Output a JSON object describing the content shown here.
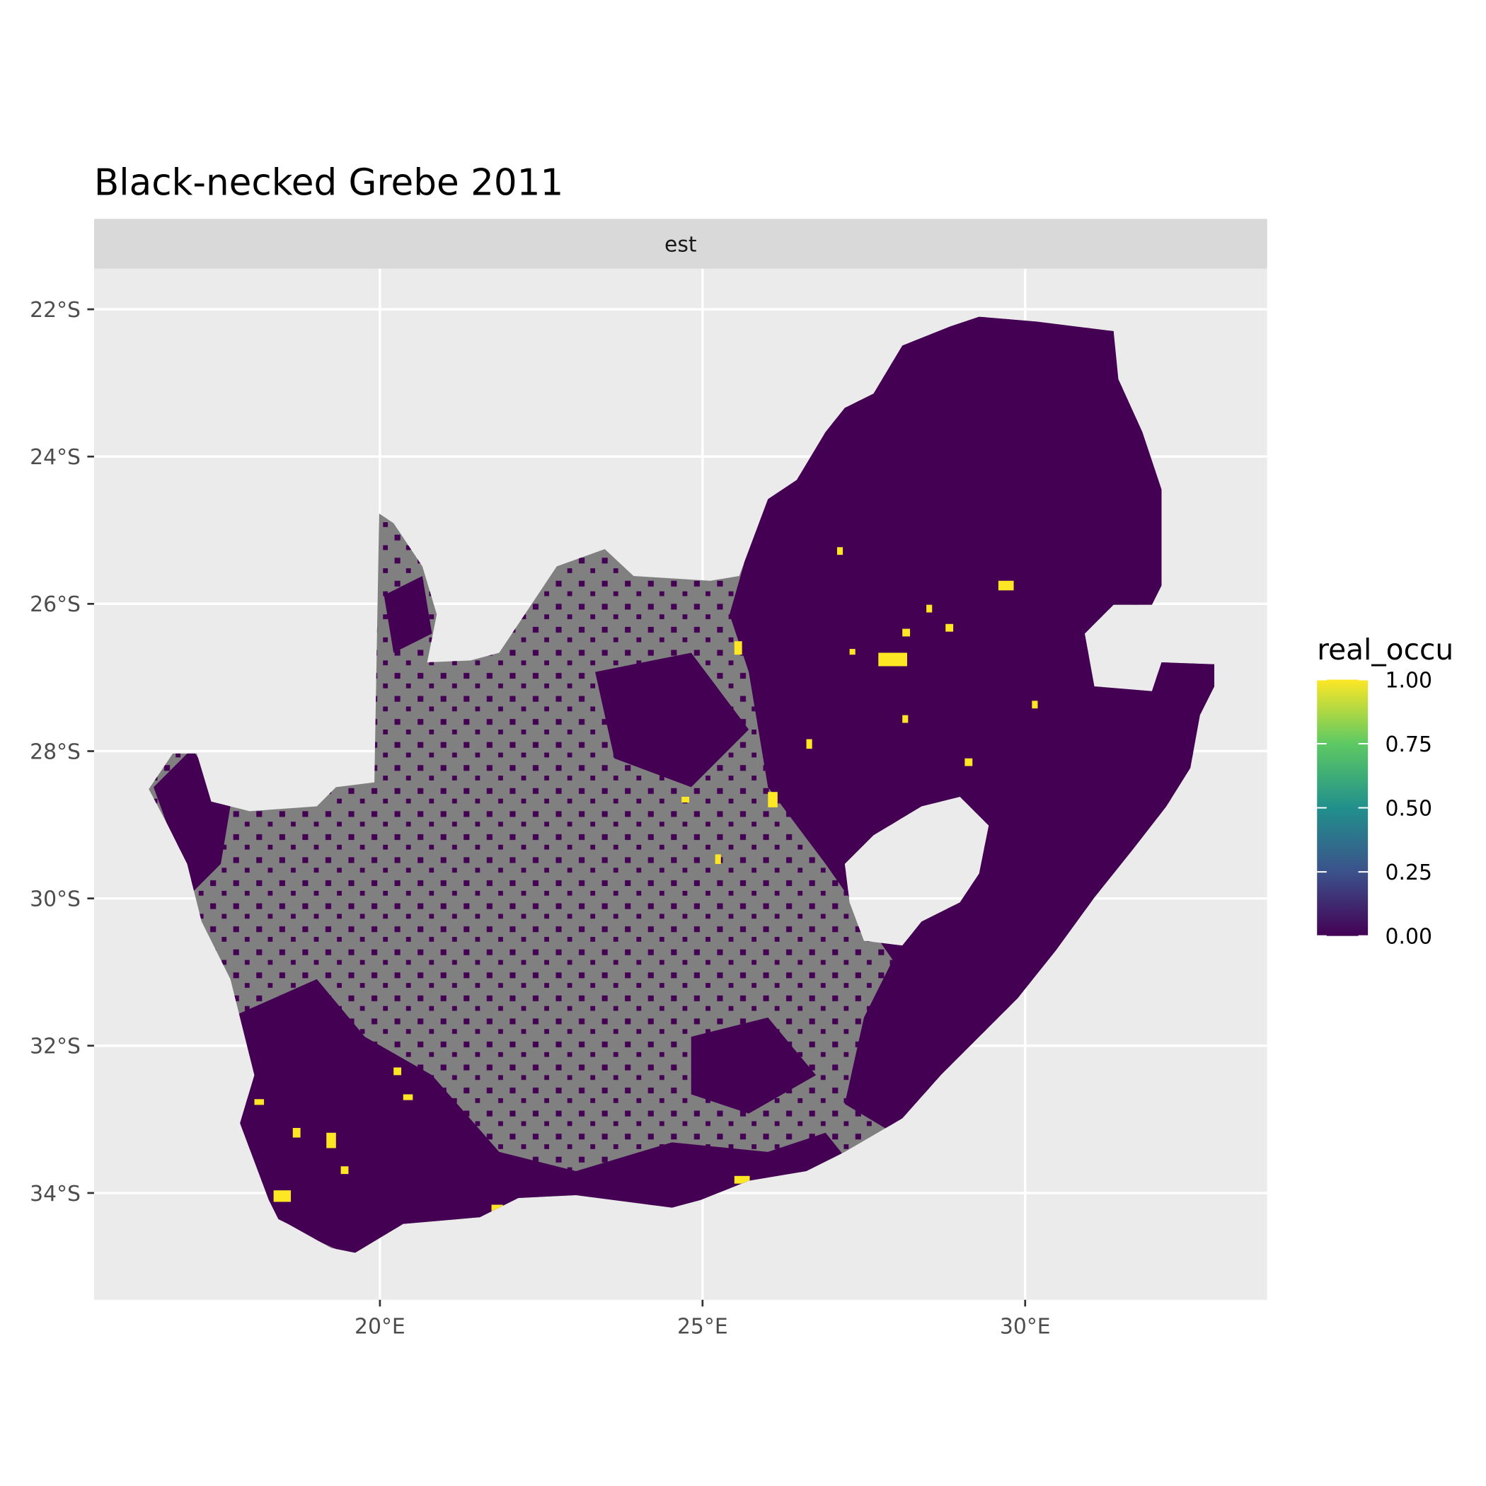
{
  "chart_data": {
    "type": "map",
    "title": "Black-necked Grebe 2011",
    "facet": "est",
    "xlim": [
      15.57,
      33.75
    ],
    "ylim": [
      -35.45,
      -21.45
    ],
    "xticks": [
      {
        "value": 20,
        "label": "20°E"
      },
      {
        "value": 25,
        "label": "25°E"
      },
      {
        "value": 30,
        "label": "30°E"
      }
    ],
    "yticks": [
      {
        "value": -22,
        "label": "22°S"
      },
      {
        "value": -24,
        "label": "24°S"
      },
      {
        "value": -26,
        "label": "26°S"
      },
      {
        "value": -28,
        "label": "28°S"
      },
      {
        "value": -30,
        "label": "30°S"
      },
      {
        "value": -32,
        "label": "32°S"
      },
      {
        "value": -34,
        "label": "34°S"
      }
    ],
    "grid": true,
    "legend": {
      "title": "real_occu",
      "limits": [
        0,
        1
      ],
      "ticks": [
        {
          "value": 0,
          "label": "0.00"
        },
        {
          "value": 0.25,
          "label": "0.25"
        },
        {
          "value": 0.5,
          "label": "0.50"
        },
        {
          "value": 0.75,
          "label": "0.75"
        },
        {
          "value": 1,
          "label": "1.00"
        }
      ],
      "colors": [
        "#440154",
        "#3b528b",
        "#21908c",
        "#5dc963",
        "#fde725"
      ]
    }
  }
}
